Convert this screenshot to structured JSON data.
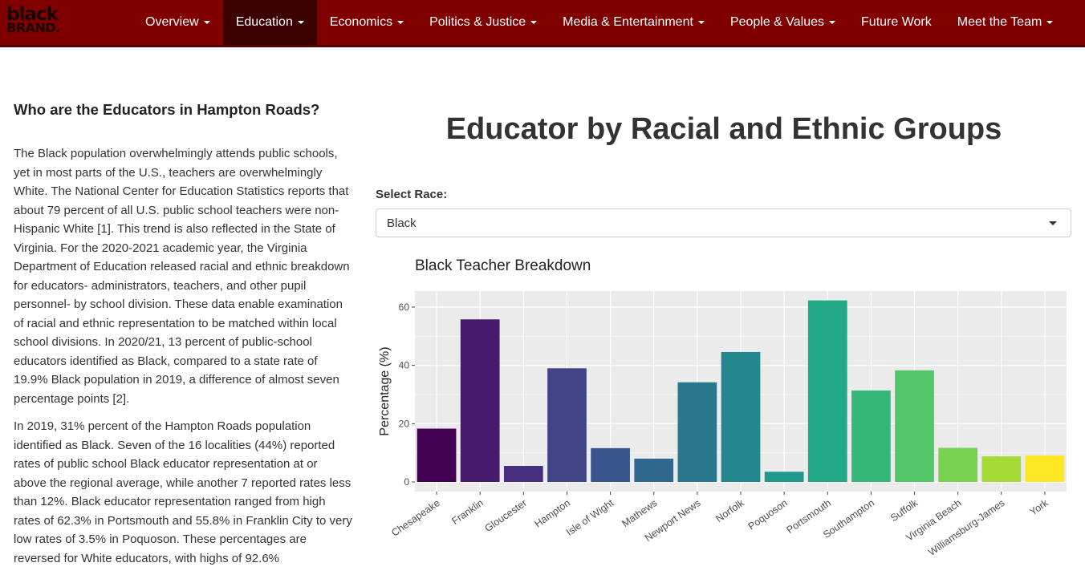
{
  "brand": {
    "line1": "black",
    "line2": "BRAND."
  },
  "nav": {
    "items": [
      {
        "label": "Overview",
        "dropdown": true,
        "active": false
      },
      {
        "label": "Education",
        "dropdown": true,
        "active": true
      },
      {
        "label": "Economics",
        "dropdown": true,
        "active": false
      },
      {
        "label": "Politics & Justice",
        "dropdown": true,
        "active": false
      },
      {
        "label": "Media & Entertainment",
        "dropdown": true,
        "active": false
      },
      {
        "label": "People & Values",
        "dropdown": true,
        "active": false
      },
      {
        "label": "Future Work",
        "dropdown": false,
        "active": false
      },
      {
        "label": "Meet the Team",
        "dropdown": true,
        "active": false
      }
    ]
  },
  "sidebar": {
    "heading": "Who are the Educators in Hampton Roads?",
    "paragraph1": "The Black population overwhelmingly attends public schools, yet in most parts of the U.S., teachers are overwhelmingly White. The National Center for Education Statistics reports that about 79 percent of all U.S. public school teachers were non-Hispanic White [1]. This trend is also reflected in the State of Virginia. For the 2020-2021 academic year, the Virginia Department of Education released racial and ethnic breakdown for educators- administrators, teachers, and other pupil personnel- by school division. These data enable examination of racial and ethnic representation to be matched within local school divisions. In 2020/21, 13 percent of public-school educators identified as Black, compared to a state rate of 19.9% Black population in 2019, a difference of almost seven percentage points [2].",
    "paragraph2": "In 2019, 31% percent of the Hampton Roads population identified as Black. Seven of the 16 localities (44%) reported rates of public school Black educator representation at or above the regional average, while another 7 reported rates less than 12%. Black educator representation ranged from high rates of 62.3% in Portsmouth and 55.8% in Franklin City to very low rates of 3.5% in Poquoson. These percentages are reversed for White educators, with highs of 92.6%"
  },
  "main": {
    "title": "Educator by Racial and Ethnic Groups",
    "select_label": "Select Race:",
    "select_value": "Black"
  },
  "chart_data": {
    "type": "bar",
    "title": "Black Teacher Breakdown",
    "xlabel": "",
    "ylabel": "Percentage (%)",
    "ylim": [
      0,
      63.5
    ],
    "yticks": [
      0,
      20,
      40,
      60
    ],
    "grid": true,
    "categories": [
      "Chesapeake",
      "Franklin",
      "Gloucester",
      "Hampton",
      "Isle of Wight",
      "Mathews",
      "Newport News",
      "Norfolk",
      "Poquoson",
      "Portsmouth",
      "Southampton",
      "Suffolk",
      "Virginia Beach",
      "Williamsburg-James",
      "York"
    ],
    "values": [
      18.3,
      55.8,
      5.5,
      39.0,
      11.6,
      8.0,
      34.2,
      44.6,
      3.5,
      62.3,
      31.4,
      38.3,
      11.7,
      8.8,
      9.1
    ],
    "colors": [
      "#440154",
      "#481a6c",
      "#472f7d",
      "#414487",
      "#39568c",
      "#31688e",
      "#2a788e",
      "#23888e",
      "#1f988b",
      "#22a884",
      "#35b779",
      "#54c568",
      "#7ad151",
      "#a5db36",
      "#fde725"
    ]
  }
}
